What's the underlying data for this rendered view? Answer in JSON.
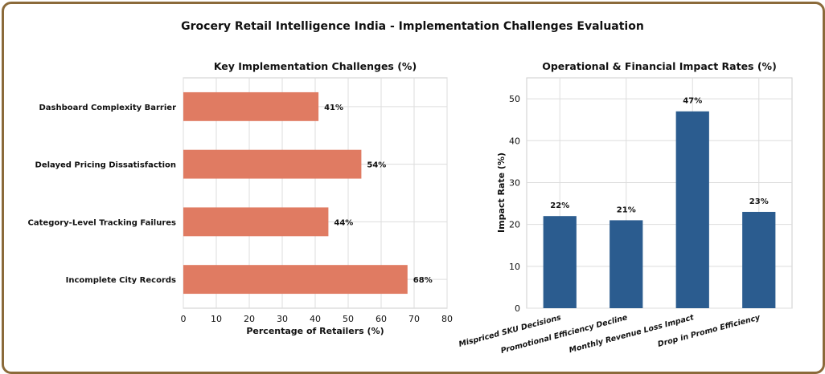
{
  "figure": {
    "title": "Grocery Retail Intelligence India - Implementation Challenges Evaluation",
    "border_color": "#8b6a3a"
  },
  "chart_data": [
    {
      "type": "bar",
      "orientation": "horizontal",
      "title": "Key Implementation Challenges (%)",
      "xlabel": "Percentage of Retailers (%)",
      "ylabel": "",
      "categories": [
        "Dashboard Complexity Barrier",
        "Delayed Pricing Dissatisfaction",
        "Category-Level Tracking Failures",
        "Incomplete City Records"
      ],
      "values": [
        41,
        54,
        44,
        68
      ],
      "value_labels": [
        "41%",
        "54%",
        "44%",
        "68%"
      ],
      "xlim": [
        0,
        80
      ],
      "xticks": [
        0,
        10,
        20,
        30,
        40,
        50,
        60,
        70,
        80
      ],
      "color": "#e07b62",
      "grid": true
    },
    {
      "type": "bar",
      "orientation": "vertical",
      "title": "Operational & Financial Impact Rates (%)",
      "xlabel": "",
      "ylabel": "Impact Rate (%)",
      "categories": [
        "Mispriced SKU Decisions",
        "Promotional Efficiency Decline",
        "Monthly Revenue Loss Impact",
        "Drop in Promo Efficiency"
      ],
      "values": [
        22,
        21,
        47,
        23
      ],
      "value_labels": [
        "22%",
        "21%",
        "47%",
        "23%"
      ],
      "ylim": [
        0,
        55
      ],
      "yticks": [
        0,
        10,
        20,
        30,
        40,
        50
      ],
      "color": "#2b5c8f",
      "grid": true
    }
  ]
}
